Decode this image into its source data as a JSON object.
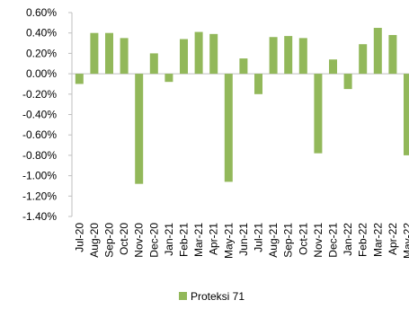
{
  "chart_data": {
    "type": "bar",
    "categories": [
      "Jul-20",
      "Aug-20",
      "Sep-20",
      "Oct-20",
      "Nov-20",
      "Dec-20",
      "Jan-21",
      "Feb-21",
      "Mar-21",
      "Apr-21",
      "May-21",
      "Jun-21",
      "Jul-21",
      "Aug-21",
      "Sep-21",
      "Oct-21",
      "Nov-21",
      "Dec-21",
      "Jan-22",
      "Feb-22",
      "Mar-22",
      "Apr-22",
      "May-22"
    ],
    "series": [
      {
        "name": "Proteksi 71",
        "color": "#92b85a",
        "values": [
          -0.1,
          0.4,
          0.4,
          0.35,
          -1.08,
          0.2,
          -0.08,
          0.34,
          0.41,
          0.39,
          -1.06,
          0.15,
          -0.2,
          0.36,
          0.37,
          0.35,
          -0.78,
          0.14,
          -0.15,
          0.29,
          0.45,
          0.38,
          -0.8
        ]
      }
    ],
    "yticks": [
      "0.60%",
      "0.40%",
      "0.20%",
      "0.00%",
      "-0.20%",
      "-0.40%",
      "-0.60%",
      "-0.80%",
      "-1.00%",
      "-1.20%",
      "-1.40%"
    ],
    "ylim": [
      -1.4,
      0.6
    ],
    "grid": false,
    "legend_position": "bottom",
    "title": "",
    "xlabel": "",
    "ylabel": ""
  }
}
